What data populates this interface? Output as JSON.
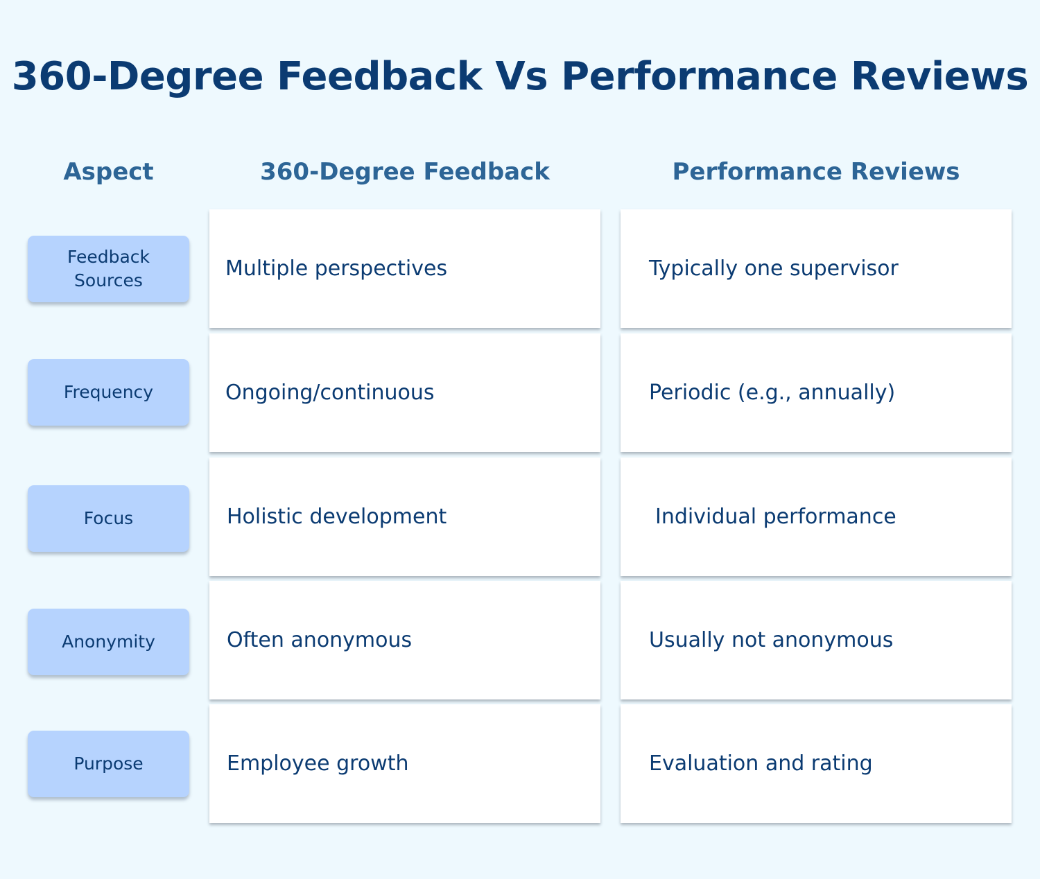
{
  "title": "360-Degree Feedback Vs Performance Reviews",
  "headers": {
    "aspect": "Aspect",
    "col_a": "360-Degree Feedback",
    "col_b": "Performance Reviews"
  },
  "rows": [
    {
      "aspect": "Feedback Sources",
      "a": "Multiple perspectives",
      "b": "Typically one supervisor"
    },
    {
      "aspect": "Frequency",
      "a": "Ongoing/continuous",
      "b": "Periodic (e.g., annually)"
    },
    {
      "aspect": "Focus",
      "a": "Holistic development",
      "b": "Individual performance"
    },
    {
      "aspect": "Anonymity",
      "a": "Often anonymous",
      "b": "Usually not anonymous"
    },
    {
      "aspect": "Purpose",
      "a": "Employee growth",
      "b": "Evaluation and rating"
    }
  ],
  "colors": {
    "background": "#eef9fe",
    "title": "#0b3b72",
    "header": "#2d6596",
    "aspect_pill": "#b6d3fe",
    "cell": "#ffffff"
  }
}
